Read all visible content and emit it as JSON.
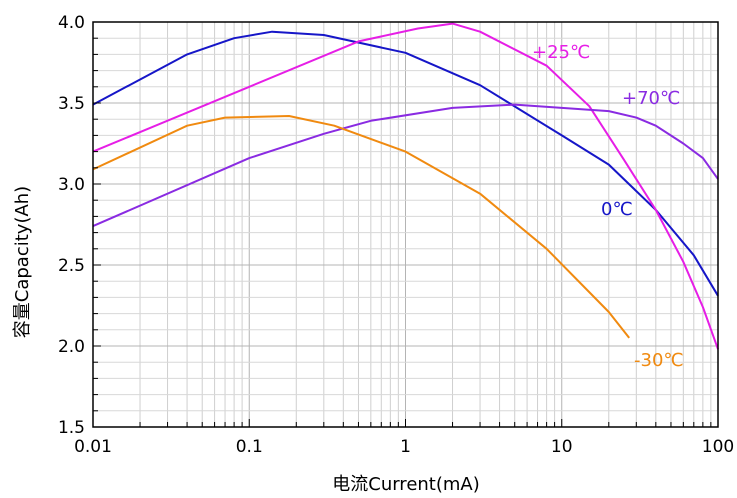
{
  "chart_data": {
    "type": "line",
    "title": "",
    "xlabel": "电流Current(mA)",
    "ylabel": "容量Capacity(Ah)",
    "x_scale": "log",
    "xlim": [
      0.01,
      100
    ],
    "ylim": [
      1.5,
      4.0
    ],
    "x_ticks": [
      {
        "value": 0.01,
        "label": "0.01"
      },
      {
        "value": 0.1,
        "label": "0.1"
      },
      {
        "value": 1,
        "label": "1"
      },
      {
        "value": 10,
        "label": "10"
      },
      {
        "value": 100,
        "label": "100"
      }
    ],
    "y_ticks": [
      {
        "value": 1.5,
        "label": "1.5"
      },
      {
        "value": 2.0,
        "label": "2.0"
      },
      {
        "value": 2.5,
        "label": "2.5"
      },
      {
        "value": 3.0,
        "label": "3.0"
      },
      {
        "value": 3.5,
        "label": "3.5"
      },
      {
        "value": 4.0,
        "label": "4.0"
      }
    ],
    "grid": true,
    "series": [
      {
        "name": "0℃",
        "color": "#1616c8",
        "x": [
          0.01,
          0.04,
          0.08,
          0.14,
          0.3,
          1,
          3,
          10,
          20,
          40,
          70,
          100
        ],
        "y": [
          3.49,
          3.8,
          3.9,
          3.94,
          3.92,
          3.81,
          3.61,
          3.3,
          3.12,
          2.84,
          2.56,
          2.31
        ]
      },
      {
        "name": "+25℃",
        "color": "#e61ee6",
        "x": [
          0.01,
          0.1,
          0.5,
          1.2,
          2,
          3,
          8,
          15,
          25,
          40,
          60,
          80,
          100
        ],
        "y": [
          3.2,
          3.6,
          3.88,
          3.96,
          3.99,
          3.94,
          3.73,
          3.48,
          3.15,
          2.84,
          2.52,
          2.24,
          1.98
        ]
      },
      {
        "name": "+70℃",
        "color": "#8a2be2",
        "x": [
          0.01,
          0.1,
          0.3,
          0.6,
          2,
          5,
          10,
          20,
          30,
          40,
          60,
          80,
          100
        ],
        "y": [
          2.74,
          3.16,
          3.31,
          3.39,
          3.47,
          3.49,
          3.47,
          3.45,
          3.41,
          3.36,
          3.25,
          3.16,
          3.03
        ]
      },
      {
        "name": "-30℃",
        "color": "#f08a10",
        "x": [
          0.01,
          0.04,
          0.07,
          0.18,
          0.35,
          1,
          3,
          8,
          20,
          27
        ],
        "y": [
          3.09,
          3.36,
          3.41,
          3.42,
          3.36,
          3.2,
          2.94,
          2.6,
          2.21,
          2.05
        ]
      }
    ],
    "series_labels": [
      {
        "text": "+25℃",
        "color": "#e61ee6"
      },
      {
        "text": "+70℃",
        "color": "#8a2be2"
      },
      {
        "text": "0℃",
        "color": "#1616c8"
      },
      {
        "text": "-30℃",
        "color": "#f08a10"
      }
    ]
  }
}
